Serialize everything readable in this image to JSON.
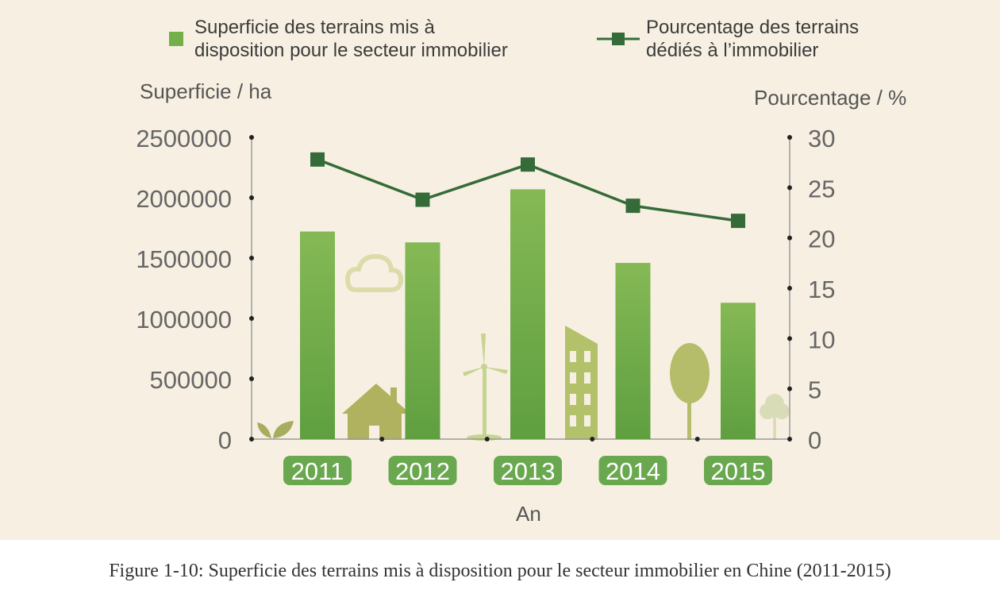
{
  "caption": "Figure 1-10: Superficie des terrains mis à disposition pour le secteur immobilier en Chine (2011-2015)",
  "legend": {
    "bar_label": "Superficie des terrains mis à\ndisposition pour le secteur immobilier",
    "line_label": "Pourcentage des terrains\ndédiés à l’immobilier"
  },
  "colors": {
    "background": "#f7f0e2",
    "bar": "#72b04a",
    "line": "#356b38",
    "tag": "#6aa84f",
    "illustration": "#b6bd6a"
  },
  "chart_data": {
    "type": "bar",
    "title": "",
    "categories": [
      "2011",
      "2012",
      "2013",
      "2014",
      "2015"
    ],
    "series": [
      {
        "name": "Superficie des terrains mis à disposition pour le secteur immobilier",
        "type": "bar",
        "axis": "left",
        "values": [
          1720000,
          1630000,
          2070000,
          1460000,
          1130000
        ]
      },
      {
        "name": "Pourcentage des terrains dédiés à l’immobilier",
        "type": "line",
        "axis": "right",
        "values": [
          27.8,
          23.8,
          27.3,
          23.2,
          21.7
        ]
      }
    ],
    "xlabel": "An",
    "ylabel_left": "Superficie / ha",
    "ylabel_right": "Pourcentage / %",
    "ylim_left": [
      0,
      2500000
    ],
    "ylim_right": [
      0,
      30
    ],
    "yticks_left": [
      0,
      500000,
      1000000,
      1500000,
      2000000,
      2500000
    ],
    "yticks_right": [
      0,
      5,
      10,
      15,
      20,
      25,
      30
    ],
    "grid": false,
    "legend_position": "top"
  }
}
